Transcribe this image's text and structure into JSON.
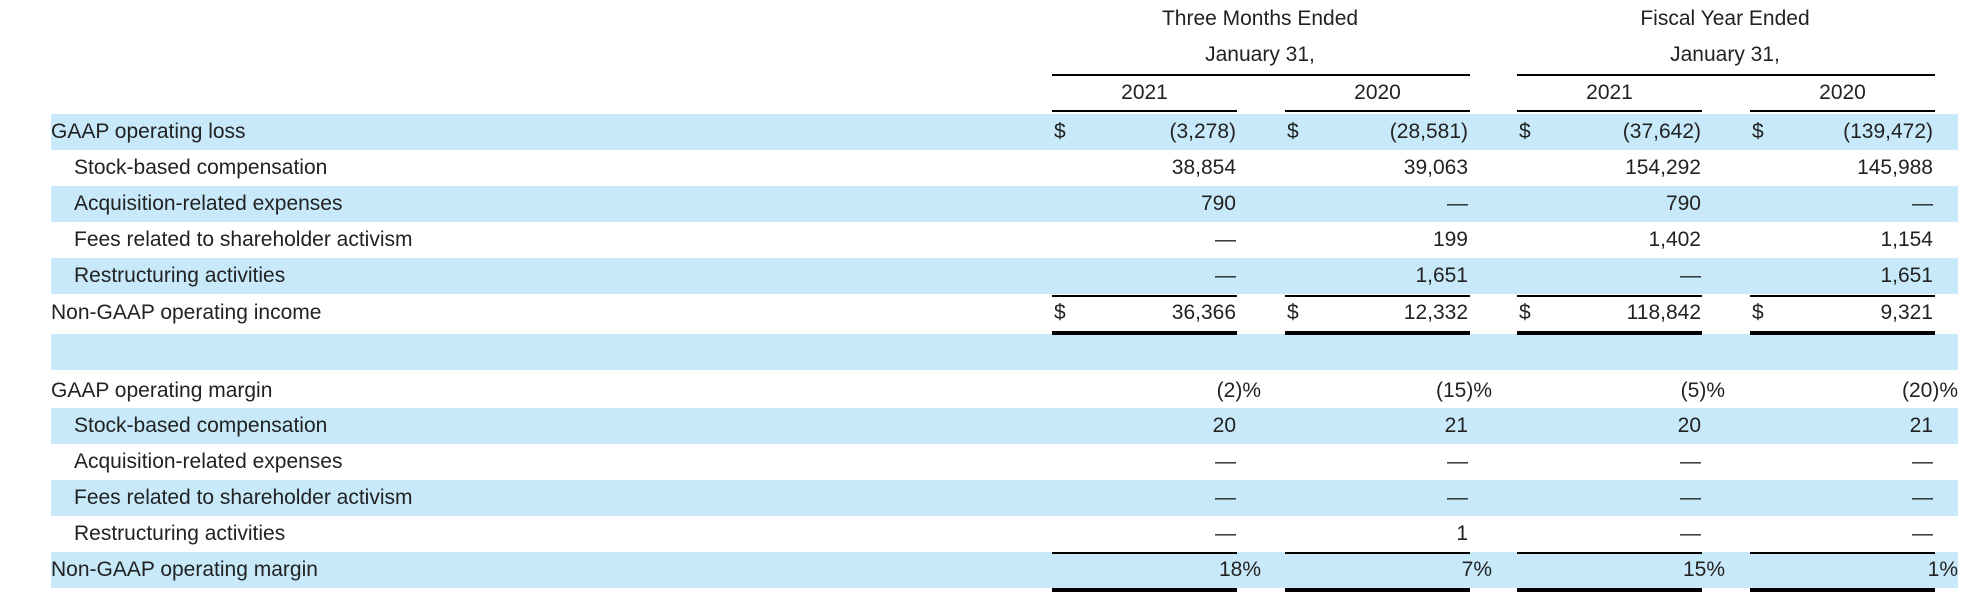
{
  "header": {
    "three_months_line1": "Three Months Ended",
    "three_months_line2": "January 31,",
    "fiscal_year_line1": "Fiscal Year Ended",
    "fiscal_year_line2": "January 31,",
    "years": [
      "2021",
      "2020",
      "2021",
      "2020"
    ]
  },
  "currency_symbol": "$",
  "rows": [
    {
      "label": "GAAP operating loss",
      "indent": false,
      "shaded": true,
      "dollar": true,
      "values": [
        "(3,278)",
        "(28,581)",
        "(37,642)",
        "(139,472)"
      ]
    },
    {
      "label": "Stock-based compensation",
      "indent": true,
      "shaded": false,
      "dollar": false,
      "values": [
        "38,854",
        "39,063",
        "154,292",
        "145,988"
      ]
    },
    {
      "label": "Acquisition-related expenses",
      "indent": true,
      "shaded": true,
      "dollar": false,
      "values": [
        "790",
        "—",
        "790",
        "—"
      ]
    },
    {
      "label": "Fees related to shareholder activism",
      "indent": true,
      "shaded": false,
      "dollar": false,
      "values": [
        "—",
        "199",
        "1,402",
        "1,154"
      ]
    },
    {
      "label": "Restructuring activities",
      "indent": true,
      "shaded": true,
      "dollar": false,
      "values": [
        "—",
        "1,651",
        "—",
        "1,651"
      ]
    },
    {
      "label": "Non-GAAP operating income",
      "indent": false,
      "shaded": false,
      "dollar": true,
      "values": [
        "36,366",
        "12,332",
        "118,842",
        "9,321"
      ]
    },
    {
      "label": "",
      "indent": false,
      "shaded": true,
      "dollar": false,
      "values": [
        "",
        "",
        "",
        ""
      ]
    },
    {
      "label": "GAAP operating margin",
      "indent": false,
      "shaded": false,
      "dollar": false,
      "values": [
        "(2)%",
        "(15)%",
        "(5)%",
        "(20)%"
      ]
    },
    {
      "label": "Stock-based compensation",
      "indent": true,
      "shaded": true,
      "dollar": false,
      "values": [
        "20",
        "21",
        "20",
        "21"
      ]
    },
    {
      "label": "Acquisition-related expenses",
      "indent": true,
      "shaded": false,
      "dollar": false,
      "values": [
        "—",
        "—",
        "—",
        "—"
      ]
    },
    {
      "label": "Fees related to shareholder activism",
      "indent": true,
      "shaded": true,
      "dollar": false,
      "values": [
        "—",
        "—",
        "—",
        "—"
      ]
    },
    {
      "label": "Restructuring activities",
      "indent": true,
      "shaded": false,
      "dollar": false,
      "values": [
        "—",
        "1",
        "—",
        "—"
      ]
    },
    {
      "label": "Non-GAAP operating margin",
      "indent": false,
      "shaded": true,
      "dollar": false,
      "values": [
        "18%",
        "7%",
        "15%",
        "1%"
      ]
    }
  ]
}
